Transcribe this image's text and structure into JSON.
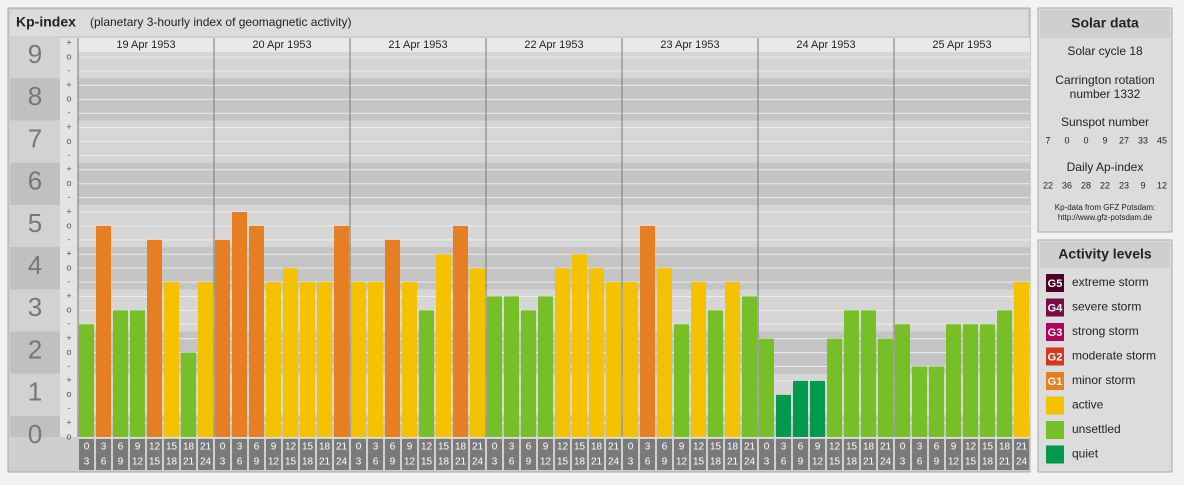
{
  "chart_data": {
    "type": "bar",
    "title": "Kp-index",
    "subtitle": "(planetary 3-hourly index of geomagnetic activity)",
    "days": [
      "19 Apr 1953",
      "20 Apr 1953",
      "21 Apr 1953",
      "22 Apr 1953",
      "23 Apr 1953",
      "24 Apr 1953",
      "25 Apr 1953"
    ],
    "hours": [
      [
        "0",
        "3"
      ],
      [
        "3",
        "6"
      ],
      [
        "6",
        "9"
      ],
      [
        "9",
        "12"
      ],
      [
        "12",
        "15"
      ],
      [
        "15",
        "18"
      ],
      [
        "18",
        "21"
      ],
      [
        "21",
        "24"
      ]
    ],
    "values": [
      2.67,
      5,
      3,
      3,
      4.67,
      3.67,
      2,
      3.67,
      4.67,
      5.33,
      5,
      3.67,
      4,
      3.67,
      3.67,
      5,
      3.67,
      3.67,
      4.67,
      3.67,
      3,
      4.33,
      5,
      4,
      3.33,
      3.33,
      3,
      3.33,
      4,
      4.33,
      4,
      3.67,
      3.67,
      5,
      4,
      2.67,
      3.67,
      3,
      3.67,
      3.33,
      2.33,
      1,
      1.33,
      1.33,
      2.33,
      3,
      3,
      2.33,
      2.67,
      1.67,
      1.67,
      2.67,
      2.67,
      2.67,
      3,
      3.67
    ],
    "colors": [
      "#77bf26",
      "#e67e22",
      "#77bf26",
      "#77bf26",
      "#e67e22",
      "#f5c200",
      "#77bf26",
      "#f5c200",
      "#e67e22",
      "#e67e22",
      "#e67e22",
      "#f5c200",
      "#f5c200",
      "#f5c200",
      "#f5c200",
      "#e67e22",
      "#f5c200",
      "#f5c200",
      "#e67e22",
      "#f5c200",
      "#77bf26",
      "#f5c200",
      "#e67e22",
      "#f5c200",
      "#77bf26",
      "#77bf26",
      "#77bf26",
      "#77bf26",
      "#f5c200",
      "#f5c200",
      "#f5c200",
      "#f5c200",
      "#f5c200",
      "#e67e22",
      "#f5c200",
      "#77bf26",
      "#f5c200",
      "#77bf26",
      "#f5c200",
      "#77bf26",
      "#77bf26",
      "#00994d",
      "#00994d",
      "#00994d",
      "#77bf26",
      "#77bf26",
      "#77bf26",
      "#77bf26",
      "#77bf26",
      "#77bf26",
      "#77bf26",
      "#77bf26",
      "#77bf26",
      "#77bf26",
      "#77bf26",
      "#f5c200"
    ],
    "ylim": [
      0,
      9.5
    ],
    "yticks": [
      0,
      1,
      2,
      3,
      4,
      5,
      6,
      7,
      8,
      9
    ],
    "minor_ticks": [
      {
        "value": -0.33,
        "label": "-"
      },
      {
        "value": 0,
        "label": "o"
      },
      {
        "value": 0.33,
        "label": "+"
      }
    ]
  },
  "solar_data": {
    "title": "Solar data",
    "cycle": "Solar cycle 18",
    "carrington": [
      "Carrington rotation",
      "number 1332"
    ],
    "sunspot_title": "Sunspot number",
    "sunspot": [
      "7",
      "0",
      "0",
      "9",
      "27",
      "33",
      "45"
    ],
    "ap_title": "Daily Ap-index",
    "ap": [
      "22",
      "36",
      "28",
      "22",
      "23",
      "9",
      "12"
    ],
    "source": [
      "Kp-data from GFZ Potsdam:",
      "http://www.gfz-potsdam.de"
    ]
  },
  "activity_levels": {
    "title": "Activity levels",
    "items": [
      {
        "badge": "G5",
        "label": "extreme storm",
        "color": "#4d0026"
      },
      {
        "badge": "G4",
        "label": "severe storm",
        "color": "#7a0a45"
      },
      {
        "badge": "G3",
        "label": "strong storm",
        "color": "#b0005c"
      },
      {
        "badge": "G2",
        "label": "moderate storm",
        "color": "#d2381f"
      },
      {
        "badge": "G1",
        "label": "minor storm",
        "color": "#e67e22"
      },
      {
        "label": "active",
        "color": "#f5c200"
      },
      {
        "label": "unsettled",
        "color": "#77bf26"
      },
      {
        "label": "quiet",
        "color": "#00994d"
      }
    ]
  }
}
